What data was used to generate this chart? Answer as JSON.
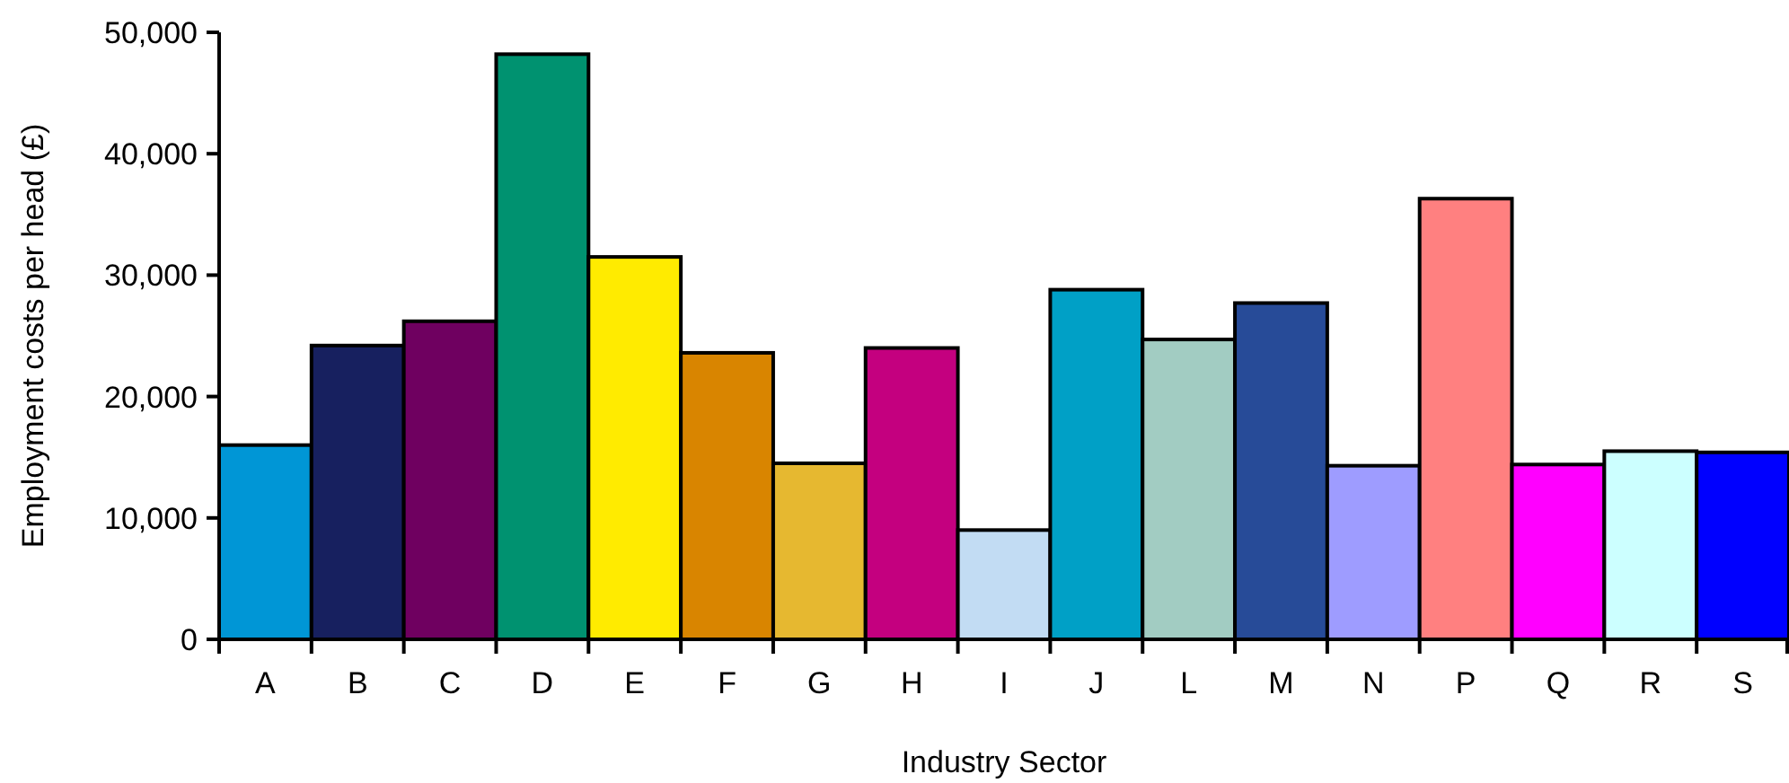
{
  "chart_data": {
    "type": "bar",
    "xlabel": "Industry Sector",
    "ylabel": "Employment costs per head (£)",
    "categories": [
      "A",
      "B",
      "C",
      "D",
      "E",
      "F",
      "G",
      "H",
      "I",
      "J",
      "L",
      "M",
      "N",
      "P",
      "Q",
      "R",
      "S"
    ],
    "values": [
      16000,
      24200,
      26200,
      48200,
      31500,
      23600,
      14500,
      24000,
      9000,
      28800,
      24700,
      27700,
      14300,
      36300,
      14400,
      15500,
      15400
    ],
    "colors": [
      "#0096d6",
      "#17205f",
      "#6f0060",
      "#009270",
      "#ffeb00",
      "#d98500",
      "#e6b830",
      "#c4007f",
      "#c2dcf3",
      "#00a0c6",
      "#a2ccc2",
      "#274b98",
      "#9e9cff",
      "#ff8080",
      "#ff00ff",
      "#ccffff",
      "#0000ff"
    ],
    "ylim": [
      0,
      50000
    ],
    "yticks": [
      {
        "value": 0,
        "label": "0"
      },
      {
        "value": 10000,
        "label": "10,000"
      },
      {
        "value": 20000,
        "label": "20,000"
      },
      {
        "value": 30000,
        "label": "30,000"
      },
      {
        "value": 40000,
        "label": "40,000"
      },
      {
        "value": 50000,
        "label": "50,000"
      }
    ],
    "grid": false
  }
}
